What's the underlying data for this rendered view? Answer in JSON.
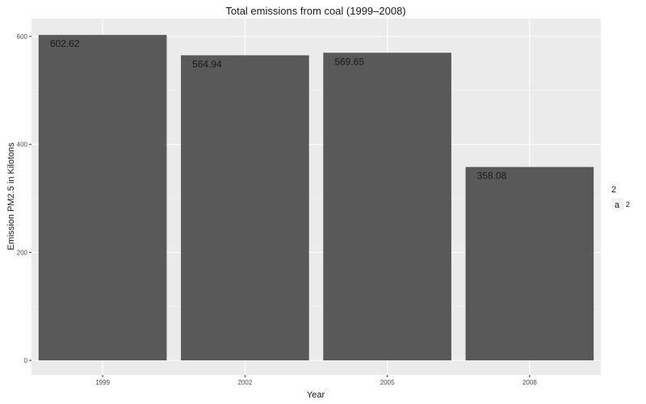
{
  "chart_data": {
    "type": "bar",
    "title": "Total emissions from coal (1999–2008)",
    "xlabel": "Year",
    "ylabel": "Emission PM2.5 in Kilotons",
    "categories": [
      "1999",
      "2002",
      "2005",
      "2008"
    ],
    "values": [
      602.62,
      564.94,
      569.65,
      358.08
    ],
    "data_labels": [
      "602.62",
      "564.94",
      "569.65",
      "358.08"
    ],
    "ylim": [
      0,
      620
    ],
    "yticks": [
      0,
      200,
      400,
      600
    ],
    "grid": true,
    "bar_color": "#595959",
    "panel_color": "#ebebeb",
    "legend": {
      "placement": "right",
      "title": "2",
      "key_glyph": "a",
      "label": "2"
    }
  }
}
